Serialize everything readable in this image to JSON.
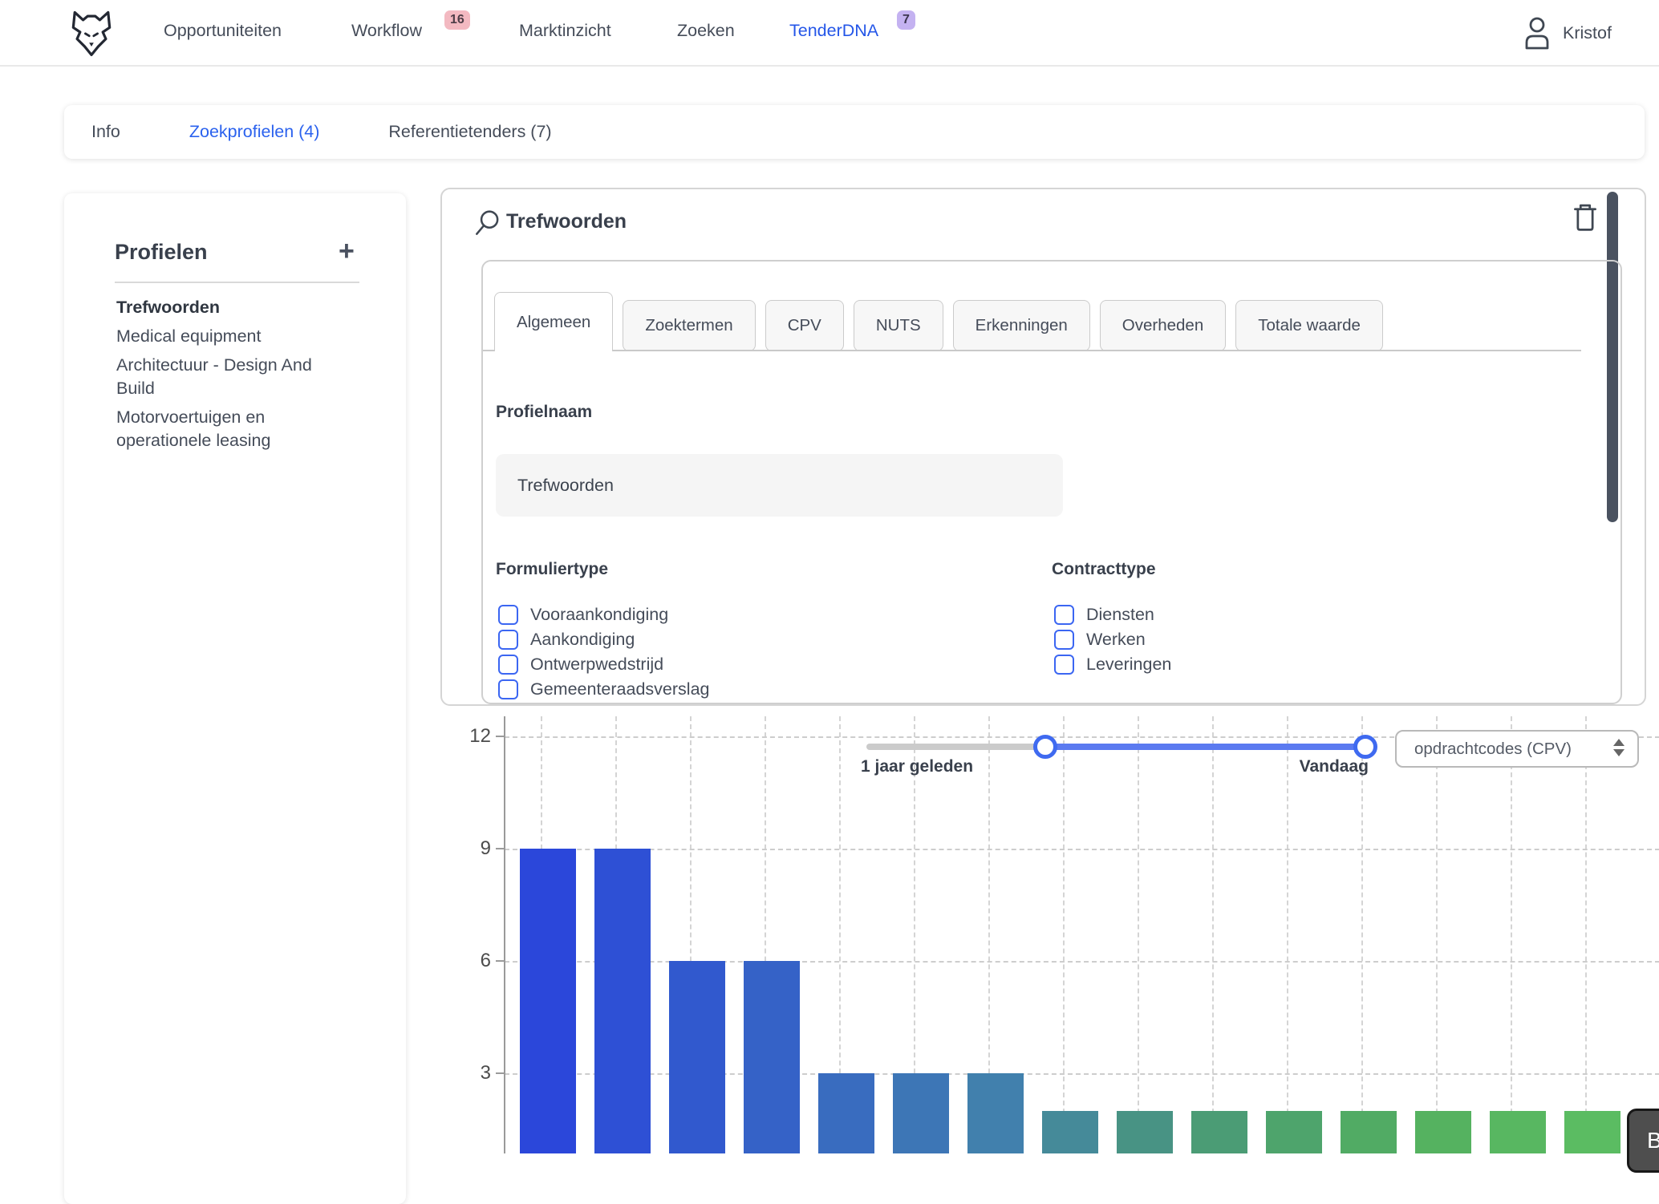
{
  "nav": {
    "items": [
      {
        "label": "Opportuniteiten"
      },
      {
        "label": "Workflow",
        "badge": "16"
      },
      {
        "label": "Marktinzicht"
      },
      {
        "label": "Zoeken"
      },
      {
        "label": "TenderDNA",
        "badge": "7"
      }
    ],
    "user": "Kristof"
  },
  "tabs": {
    "items": [
      {
        "label": "Info"
      },
      {
        "label": "Zoekprofielen (4)"
      },
      {
        "label": "Referentietenders (7)"
      }
    ]
  },
  "sidebar": {
    "title": "Profielen",
    "add_label": "+",
    "items": [
      {
        "label": "Trefwoorden"
      },
      {
        "label": "Medical equipment"
      },
      {
        "label": "Architectuur - Design And Build"
      },
      {
        "label": "Motorvoertuigen en operationele leasing"
      }
    ]
  },
  "panel": {
    "title": "Trefwoorden",
    "tabs": [
      {
        "label": "Algemeen"
      },
      {
        "label": "Zoektermen"
      },
      {
        "label": "CPV"
      },
      {
        "label": "NUTS"
      },
      {
        "label": "Erkenningen"
      },
      {
        "label": "Overheden"
      },
      {
        "label": "Totale waarde"
      }
    ],
    "profielnaam_label": "Profielnaam",
    "profielnaam_value": "Trefwoorden",
    "formuliertype": {
      "label": "Formuliertype",
      "options": [
        "Vooraankondiging",
        "Aankondiging",
        "Ontwerpwedstrijd",
        "Gemeenteraadsverslag"
      ]
    },
    "contracttype": {
      "label": "Contracttype",
      "options": [
        "Diensten",
        "Werken",
        "Leveringen"
      ]
    }
  },
  "timeline": {
    "start_label": "1 jaar geleden",
    "end_label": "Vandaag"
  },
  "dropdown": {
    "value": "opdrachtcodes (CPV)"
  },
  "misc": {
    "cut_button_label": "B"
  },
  "colors": {
    "accent_blue": "#2456e8",
    "checkbox_blue": "#3b66f2",
    "slider_blue": "#5b7af0",
    "badge_pink": "#f3b9c1",
    "badge_purple": "#c4b2f1",
    "scrollbar": "#4a5260"
  },
  "chart_data": {
    "type": "bar",
    "title": "",
    "values": [
      9,
      9,
      6,
      6,
      3,
      3,
      3,
      2,
      2,
      2,
      2,
      2,
      2,
      2,
      2
    ],
    "categories": [
      "",
      "",
      "",
      "",
      "",
      "",
      "",
      "",
      "",
      "",
      "",
      "",
      "",
      "",
      ""
    ],
    "yticks": [
      3,
      6,
      9,
      12
    ],
    "ylim": [
      0,
      12
    ],
    "grid": "dashed",
    "legend": "none",
    "bar_colors": [
      "#2b47da",
      "#2e50d5",
      "#3159ce",
      "#3562c7",
      "#396cbf",
      "#3d76b6",
      "#4180ad",
      "#458a99",
      "#489384",
      "#4b9c75",
      "#4ea46c",
      "#51ab64",
      "#55b260",
      "#58b761",
      "#5bbc62"
    ]
  }
}
